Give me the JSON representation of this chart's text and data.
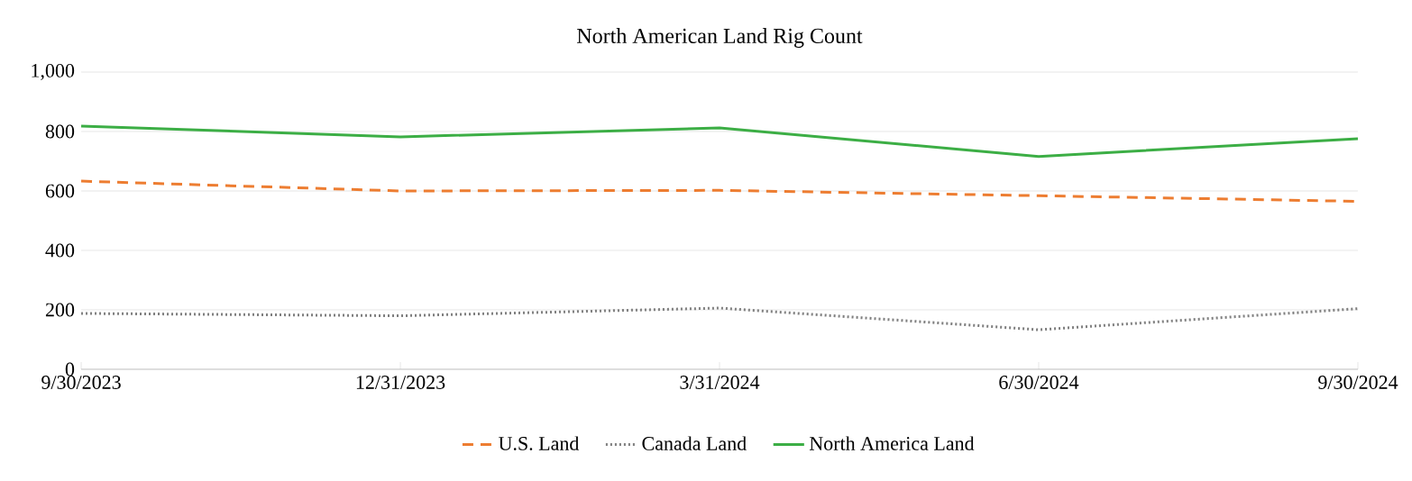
{
  "chart_data": {
    "type": "line",
    "title": "North American Land Rig Count",
    "categories": [
      "9/30/2023",
      "12/31/2023",
      "3/31/2024",
      "6/30/2024",
      "9/30/2024"
    ],
    "series": [
      {
        "name": "U.S. Land",
        "color": "#ed7d31",
        "line_style": "dashed",
        "values": [
          633,
          600,
          602,
          584,
          565
        ]
      },
      {
        "name": "Canada Land",
        "color": "#7f7f7f",
        "line_style": "dotted",
        "values": [
          188,
          180,
          206,
          133,
          204
        ]
      },
      {
        "name": "North America Land",
        "color": "#3cae45",
        "line_style": "solid",
        "values": [
          818,
          782,
          812,
          716,
          776
        ]
      }
    ],
    "ylim": [
      0,
      1000
    ],
    "yticks": [
      0,
      200,
      400,
      600,
      800,
      {
        "value": 1000,
        "label": "1,000"
      }
    ],
    "grid": "y",
    "legend": "bottom",
    "marker": "none"
  }
}
